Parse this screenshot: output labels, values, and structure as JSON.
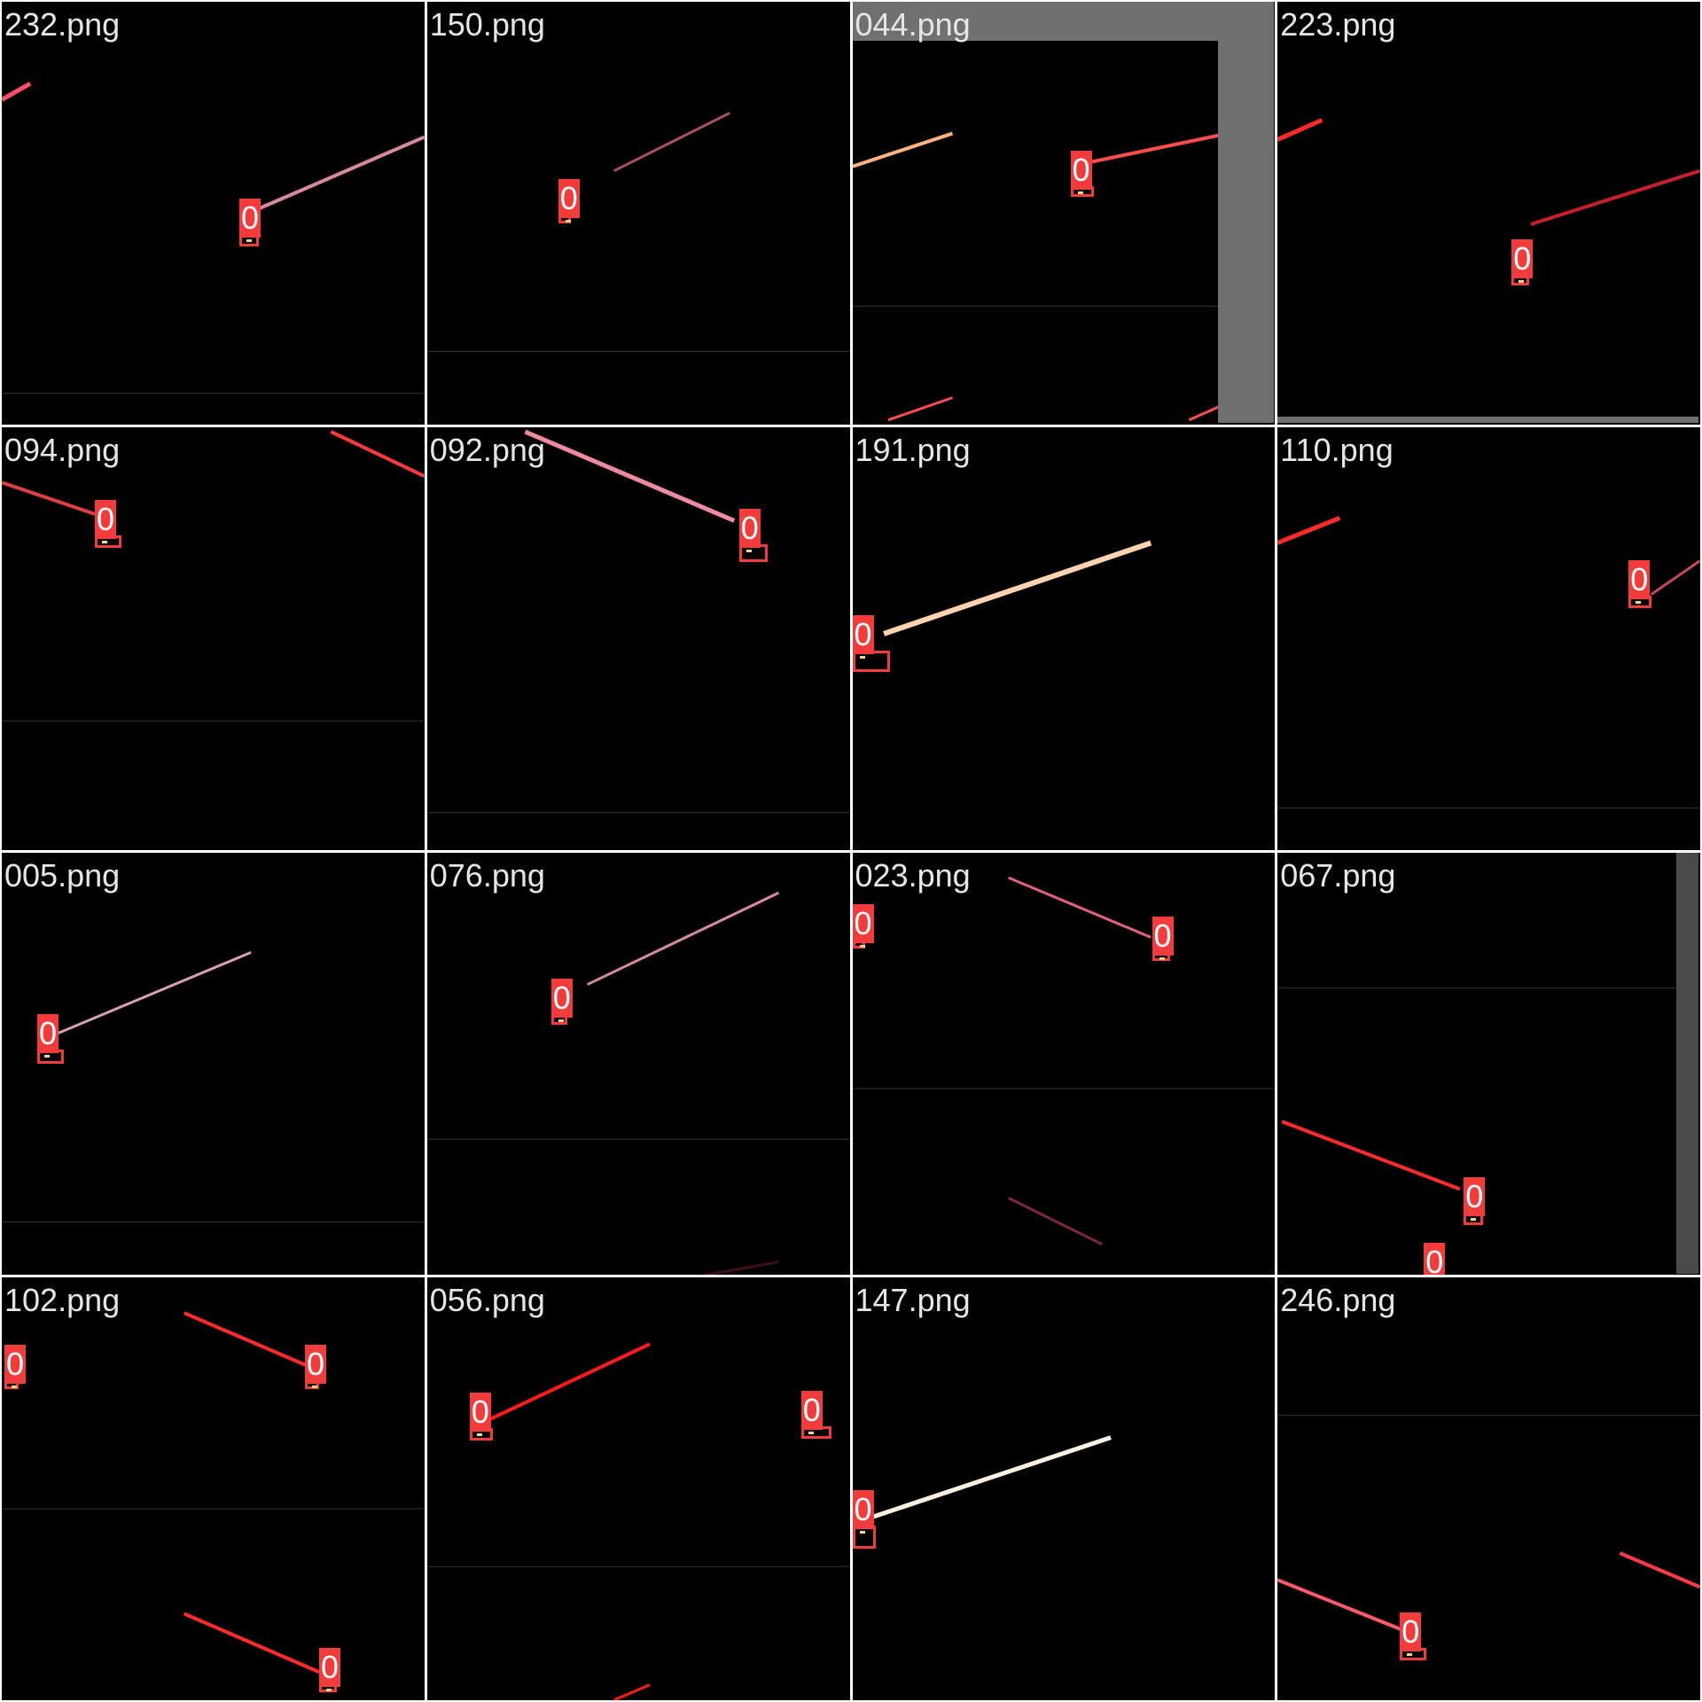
{
  "tiles": [
    {
      "filename": "232.png",
      "detections": [
        "0"
      ]
    },
    {
      "filename": "150.png",
      "detections": [
        "0"
      ]
    },
    {
      "filename": "044.png",
      "detections": [
        "0"
      ]
    },
    {
      "filename": "223.png",
      "detections": [
        "0"
      ]
    },
    {
      "filename": "094.png",
      "detections": [
        "0"
      ]
    },
    {
      "filename": "092.png",
      "detections": [
        "0"
      ]
    },
    {
      "filename": "191.png",
      "detections": [
        "0"
      ]
    },
    {
      "filename": "110.png",
      "detections": [
        "0"
      ]
    },
    {
      "filename": "005.png",
      "detections": [
        "0"
      ]
    },
    {
      "filename": "076.png",
      "detections": [
        "0"
      ]
    },
    {
      "filename": "023.png",
      "detections": [
        "0",
        "0"
      ]
    },
    {
      "filename": "067.png",
      "detections": [
        "0",
        "0"
      ]
    },
    {
      "filename": "102.png",
      "detections": [
        "0",
        "0",
        "0"
      ]
    },
    {
      "filename": "056.png",
      "detections": [
        "0",
        "0"
      ]
    },
    {
      "filename": "147.png",
      "detections": [
        "0"
      ]
    },
    {
      "filename": "246.png",
      "detections": [
        "0"
      ]
    }
  ],
  "colors": {
    "background": "#000000",
    "grid_gap": "#ffffff",
    "label_fill": "#f23b3b",
    "label_text": "#ffffff",
    "filename_text": "#e6e6e6",
    "padding_gray": "#707070"
  }
}
